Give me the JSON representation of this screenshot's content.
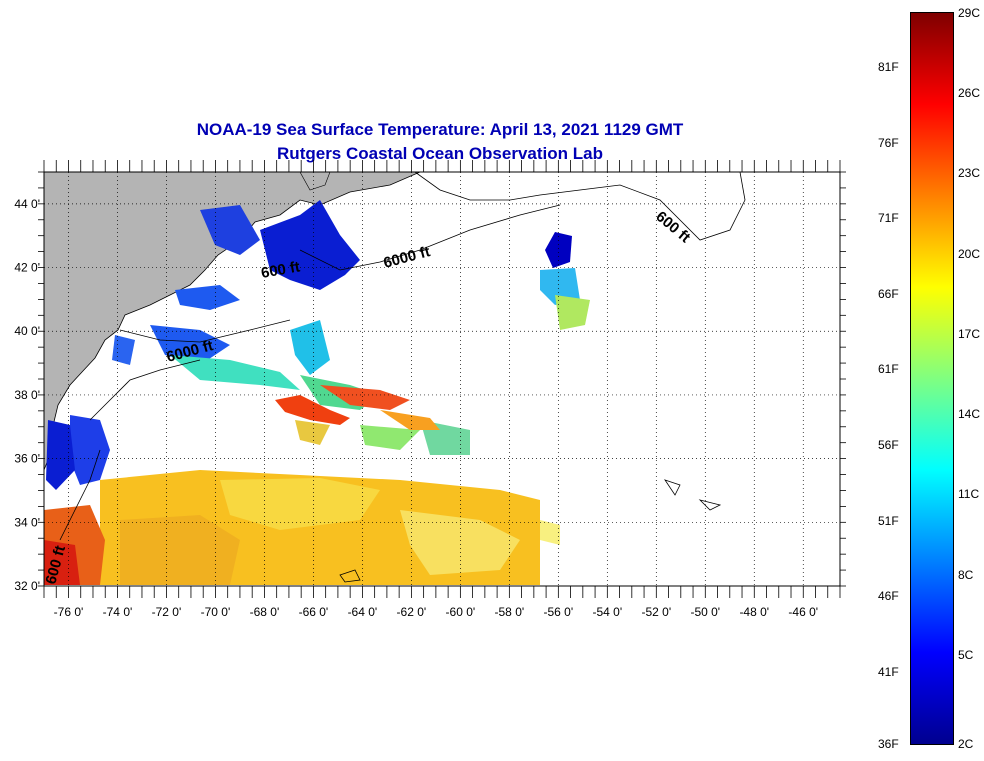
{
  "title": "NOAA-19 Sea Surface Temperature:  April 13, 2021 1129 GMT",
  "subtitle": "Rutgers Coastal Ocean Observation Lab",
  "map": {
    "lon_range": [
      -77,
      -44.5
    ],
    "lat_range": [
      32,
      45
    ],
    "lon_ticks": [
      "-76 0'",
      "-74 0'",
      "-72 0'",
      "-70 0'",
      "-68 0'",
      "-66 0'",
      "-64 0'",
      "-62 0'",
      "-60 0'",
      "-58 0'",
      "-56 0'",
      "-54 0'",
      "-52 0'",
      "-50 0'",
      "-48 0'",
      "-46 0'"
    ],
    "lat_ticks": [
      "44 0'",
      "42 0'",
      "40 0'",
      "38 0'",
      "36 0'",
      "34 0'",
      "32 0'"
    ],
    "grid": "dotted",
    "land_color": "#b4b4b4",
    "isobath_labels": [
      "600 ft",
      "600 ft",
      "6000 ft",
      "6000 ft",
      "600 ft"
    ]
  },
  "colorbar": {
    "celsius_labels": [
      "29C",
      "26C",
      "23C",
      "20C",
      "17C",
      "14C",
      "11C",
      "8C",
      "5C",
      "2C"
    ],
    "fahrenheit_labels": [
      "81F",
      "76F",
      "71F",
      "66F",
      "61F",
      "56F",
      "51F",
      "46F",
      "41F",
      "36F"
    ],
    "colors": [
      "#7f0000",
      "#ff0000",
      "#ff8000",
      "#ffff00",
      "#80ff80",
      "#00ffff",
      "#0080ff",
      "#0000ff",
      "#00008f"
    ]
  }
}
